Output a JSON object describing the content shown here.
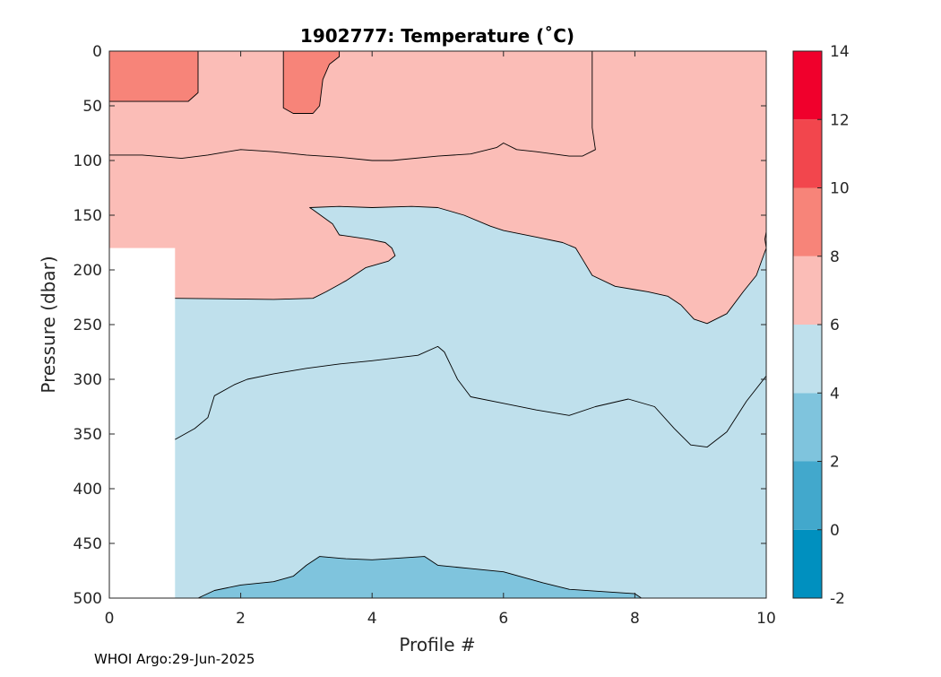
{
  "chart_data": {
    "type": "contour",
    "title": "1902777:  Temperature (˚C)",
    "xlabel": "Profile #",
    "ylabel": "Pressure (dbar)",
    "footer": "WHOI Argo:29-Jun-2025",
    "xlim": [
      0,
      10
    ],
    "ylim": [
      0,
      500
    ],
    "y_reversed": true,
    "x_ticks": [
      "0",
      "2",
      "4",
      "6",
      "8",
      "10"
    ],
    "y_ticks": [
      "0",
      "50",
      "100",
      "150",
      "200",
      "250",
      "300",
      "350",
      "400",
      "450",
      "500"
    ],
    "colorbar": {
      "levels": [
        -2,
        0,
        2,
        4,
        6,
        8,
        10,
        12,
        14
      ],
      "tick_labels": [
        "-2",
        "0",
        "2",
        "4",
        "6",
        "8",
        "10",
        "12",
        "14"
      ],
      "colors": [
        "#0090bf",
        "#42a8cc",
        "#7fc4dd",
        "#bfe0ec",
        "#fbbdb7",
        "#f78479",
        "#f2464d",
        "#f0002c"
      ]
    },
    "no_data_region": {
      "x": [
        0,
        1
      ],
      "y": [
        180,
        500
      ]
    },
    "contour_lines": [
      {
        "level": 8,
        "points": [
          [
            0,
            46
          ],
          [
            1.2,
            46
          ],
          [
            1.35,
            38
          ],
          [
            1.35,
            0
          ]
        ]
      },
      {
        "level": 8,
        "points": [
          [
            2.65,
            0
          ],
          [
            2.65,
            52
          ],
          [
            2.8,
            57
          ],
          [
            3.1,
            57
          ],
          [
            3.2,
            50
          ],
          [
            3.25,
            26
          ],
          [
            3.35,
            12
          ],
          [
            3.5,
            5
          ],
          [
            3.5,
            0
          ]
        ]
      },
      {
        "level": 7,
        "points": [
          [
            0,
            95
          ],
          [
            0.5,
            95
          ],
          [
            1.1,
            98
          ],
          [
            1.5,
            95
          ],
          [
            1.8,
            92
          ],
          [
            2,
            90
          ],
          [
            2.5,
            92
          ],
          [
            3,
            95
          ],
          [
            3.5,
            97
          ],
          [
            4,
            100
          ],
          [
            4.3,
            100
          ],
          [
            5,
            96
          ],
          [
            5.5,
            94
          ],
          [
            5.9,
            88
          ],
          [
            6,
            84
          ],
          [
            6.2,
            90
          ],
          [
            6.5,
            92
          ],
          [
            7,
            96
          ],
          [
            7.2,
            96
          ],
          [
            7.4,
            90
          ],
          [
            7.35,
            70
          ],
          [
            7.35,
            0
          ]
        ]
      },
      {
        "level": 6,
        "points": [
          [
            1,
            226
          ],
          [
            2.5,
            227
          ],
          [
            3.1,
            226
          ],
          [
            3.3,
            220
          ],
          [
            3.6,
            210
          ],
          [
            3.9,
            198
          ],
          [
            4.25,
            192
          ],
          [
            4.35,
            187
          ],
          [
            4.3,
            180
          ],
          [
            4.2,
            175
          ],
          [
            3.95,
            172
          ],
          [
            3.5,
            168
          ],
          [
            3.4,
            158
          ],
          [
            3.1,
            145
          ],
          [
            3.05,
            143
          ],
          [
            3.5,
            142
          ],
          [
            4,
            143
          ],
          [
            4.6,
            142
          ],
          [
            5,
            143
          ],
          [
            5.4,
            150
          ],
          [
            5.8,
            160
          ],
          [
            6,
            164
          ],
          [
            6.5,
            170
          ],
          [
            6.9,
            175
          ],
          [
            7.1,
            180
          ],
          [
            7.2,
            190
          ],
          [
            7.35,
            205
          ],
          [
            7.7,
            215
          ],
          [
            8,
            218
          ],
          [
            8.2,
            220
          ],
          [
            8.5,
            224
          ],
          [
            8.7,
            232
          ],
          [
            8.9,
            245
          ],
          [
            9.1,
            249
          ],
          [
            9.4,
            240
          ],
          [
            9.65,
            220
          ],
          [
            9.85,
            205
          ],
          [
            10,
            180
          ]
        ]
      },
      {
        "level": 5,
        "points": [
          [
            1,
            355
          ],
          [
            1.3,
            345
          ],
          [
            1.5,
            335
          ],
          [
            1.6,
            315
          ],
          [
            1.9,
            305
          ],
          [
            2.1,
            300
          ],
          [
            2.5,
            295
          ],
          [
            3,
            290
          ],
          [
            3.5,
            286
          ],
          [
            4,
            283
          ],
          [
            4.7,
            278
          ],
          [
            5,
            270
          ],
          [
            5.1,
            275
          ],
          [
            5.3,
            300
          ],
          [
            5.5,
            316
          ],
          [
            6,
            322
          ],
          [
            6.5,
            328
          ],
          [
            7,
            333
          ],
          [
            7.4,
            325
          ],
          [
            7.9,
            318
          ],
          [
            8.3,
            325
          ],
          [
            8.6,
            345
          ],
          [
            8.85,
            360
          ],
          [
            9.1,
            362
          ],
          [
            9.4,
            348
          ],
          [
            9.7,
            320
          ],
          [
            10,
            297
          ]
        ]
      },
      {
        "level": 4,
        "points": [
          [
            1.35,
            500
          ],
          [
            1.6,
            493
          ],
          [
            2,
            488
          ],
          [
            2.5,
            485
          ],
          [
            2.8,
            480
          ],
          [
            3,
            470
          ],
          [
            3.2,
            462
          ],
          [
            3.6,
            464
          ],
          [
            4,
            465
          ],
          [
            4.8,
            462
          ],
          [
            5,
            470
          ],
          [
            5.5,
            473
          ],
          [
            6,
            476
          ],
          [
            6.6,
            486
          ],
          [
            7,
            492
          ],
          [
            7.5,
            494
          ],
          [
            8,
            496
          ],
          [
            8.1,
            500
          ]
        ]
      }
    ]
  }
}
